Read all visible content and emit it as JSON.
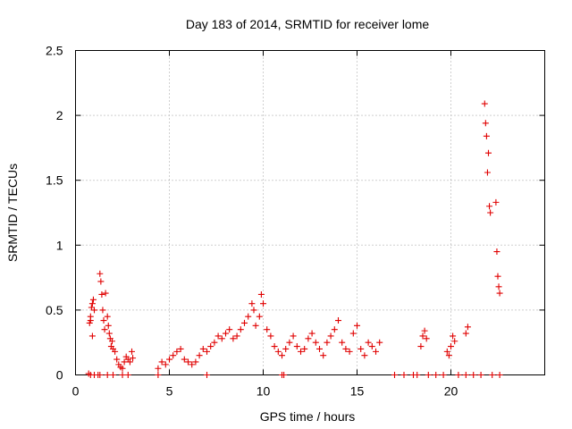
{
  "chart_data": {
    "type": "scatter",
    "title": "Day 183 of 2014, SRMTID for receiver lome",
    "xlabel": "GPS time / hours",
    "ylabel": "SRMTID / TECUs",
    "xlim": [
      0,
      25
    ],
    "ylim": [
      0,
      2.5
    ],
    "xticks": [
      0,
      5,
      10,
      15,
      20
    ],
    "xtick_labels": [
      "0",
      "5",
      "10",
      "15",
      "20"
    ],
    "yticks": [
      0,
      0.5,
      1,
      1.5,
      2,
      2.5
    ],
    "ytick_labels": [
      "0",
      "0.5",
      "1",
      "1.5",
      "2",
      "2.5"
    ],
    "grid": true,
    "marker": "+",
    "series": [
      {
        "name": "SRMTID",
        "color": "#e00000",
        "x": [
          0.7,
          0.75,
          0.8,
          0.85,
          0.9,
          0.95,
          1.0,
          0.8,
          0.9,
          1.3,
          1.35,
          1.4,
          1.45,
          1.5,
          1.55,
          1.6,
          1.7,
          1.75,
          1.8,
          1.85,
          1.9,
          1.95,
          2.0,
          2.1,
          2.2,
          2.3,
          2.4,
          2.5,
          2.6,
          2.7,
          2.8,
          2.9,
          3.0,
          3.05,
          4.4,
          4.6,
          4.8,
          5.0,
          5.2,
          5.4,
          5.6,
          5.8,
          6.0,
          6.2,
          6.4,
          6.6,
          6.8,
          7.0,
          7.2,
          7.4,
          7.6,
          7.8,
          8.0,
          8.2,
          8.4,
          8.6,
          8.8,
          9.0,
          9.2,
          9.4,
          9.5,
          9.6,
          9.8,
          9.9,
          10.0,
          10.2,
          10.4,
          10.6,
          10.8,
          11.0,
          11.2,
          11.4,
          11.6,
          11.8,
          12.0,
          12.2,
          12.4,
          12.6,
          12.8,
          13.0,
          13.2,
          13.4,
          13.6,
          13.8,
          14.0,
          14.2,
          14.4,
          14.6,
          14.8,
          15.0,
          15.2,
          15.4,
          15.6,
          15.8,
          16.0,
          16.2,
          18.4,
          18.5,
          18.6,
          18.7,
          19.8,
          19.9,
          20.0,
          20.1,
          20.2,
          20.8,
          20.9,
          21.8,
          21.85,
          21.9,
          21.95,
          22.0,
          22.05,
          22.1,
          22.4,
          22.45,
          22.5,
          22.55,
          22.6,
          0.8,
          1.0,
          1.2,
          1.3,
          1.7,
          2.0,
          2.5,
          2.8,
          4.4,
          7.0,
          11.0,
          11.1,
          17.0,
          17.5,
          18.0,
          18.2,
          18.8,
          19.2,
          19.6,
          20.4,
          20.8,
          21.2,
          21.6,
          22.2,
          22.6
        ],
        "y": [
          0.01,
          0.4,
          0.45,
          0.52,
          0.55,
          0.58,
          0.5,
          0.42,
          0.3,
          0.78,
          0.72,
          0.62,
          0.5,
          0.42,
          0.35,
          0.63,
          0.45,
          0.38,
          0.32,
          0.28,
          0.22,
          0.26,
          0.2,
          0.18,
          0.12,
          0.08,
          0.06,
          0.05,
          0.1,
          0.14,
          0.12,
          0.1,
          0.18,
          0.13,
          0.05,
          0.1,
          0.08,
          0.12,
          0.15,
          0.18,
          0.2,
          0.12,
          0.1,
          0.08,
          0.1,
          0.15,
          0.2,
          0.18,
          0.22,
          0.25,
          0.3,
          0.28,
          0.32,
          0.35,
          0.28,
          0.3,
          0.35,
          0.4,
          0.45,
          0.55,
          0.5,
          0.38,
          0.45,
          0.62,
          0.55,
          0.35,
          0.3,
          0.22,
          0.18,
          0.15,
          0.2,
          0.25,
          0.3,
          0.22,
          0.18,
          0.2,
          0.28,
          0.32,
          0.25,
          0.2,
          0.15,
          0.25,
          0.3,
          0.35,
          0.42,
          0.25,
          0.2,
          0.18,
          0.32,
          0.38,
          0.2,
          0.15,
          0.25,
          0.22,
          0.18,
          0.25,
          0.22,
          0.3,
          0.34,
          0.28,
          0.18,
          0.15,
          0.22,
          0.3,
          0.26,
          0.32,
          0.37,
          2.09,
          1.94,
          1.84,
          1.56,
          1.71,
          1.3,
          1.25,
          1.33,
          0.95,
          0.76,
          0.68,
          0.63,
          0.0,
          0.0,
          0.0,
          0.0,
          0.0,
          0.0,
          0.0,
          0.0,
          0.0,
          0.0,
          0.0,
          0.0,
          0.0,
          0.0,
          0.0,
          0.0,
          0.0,
          0.0,
          0.0,
          0.0,
          0.0,
          0.0,
          0.0,
          0.0,
          0.0
        ]
      }
    ]
  }
}
